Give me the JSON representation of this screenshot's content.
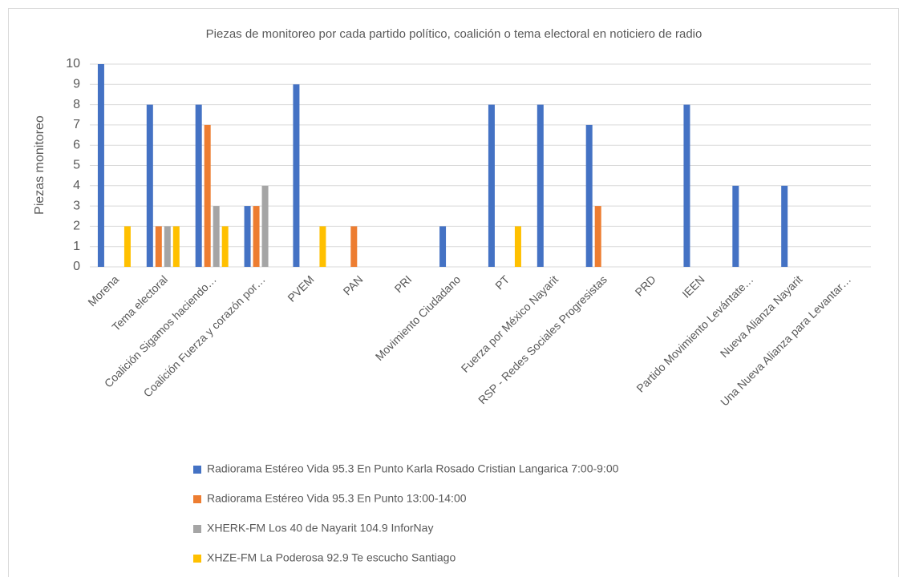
{
  "chart_data": {
    "type": "bar",
    "title": "Piezas de monitoreo por cada partido político, coalición o tema electoral en noticiero de radio",
    "y_label": "Piezas monitoreo",
    "categories": [
      "Morena",
      "Tema electoral",
      "Coalición Sigamos haciendo…",
      "Coalición Fuerza y corazón por…",
      "PVEM",
      "PAN",
      "PRI",
      "Movimiento Ciudadano",
      "PT",
      "Fuerza por México Nayarit",
      "RSP - Redes Sociales Progresistas",
      "PRD",
      "IEEN",
      "Partido Movimiento Levántate…",
      "Nueva Alianza Nayarit",
      "Una Nueva Alianza para Levantar…"
    ],
    "series": [
      {
        "name": "Radiorama Estéreo Vida 95.3 En Punto Karla Rosado Cristian Langarica 7:00-9:00",
        "color": "#4472c4",
        "values": [
          10,
          8,
          8,
          3,
          9,
          0,
          0,
          2,
          8,
          8,
          7,
          0,
          8,
          4,
          4,
          0
        ]
      },
      {
        "name": "Radiorama Estéreo Vida 95.3 En Punto 13:00-14:00",
        "color": "#ed7d31",
        "values": [
          0,
          2,
          7,
          3,
          0,
          2,
          0,
          0,
          0,
          0,
          3,
          0,
          0,
          0,
          0,
          0
        ]
      },
      {
        "name": "XHERK-FM Los 40 de Nayarit 104.9 InforNay",
        "color": "#a5a5a5",
        "values": [
          0,
          2,
          3,
          4,
          0,
          0,
          0,
          0,
          0,
          0,
          0,
          0,
          0,
          0,
          0,
          0
        ]
      },
      {
        "name": "XHZE-FM La Poderosa 92.9 Te escucho Santiago",
        "color": "#ffc000",
        "values": [
          2,
          2,
          2,
          0,
          2,
          0,
          0,
          0,
          2,
          0,
          0,
          0,
          0,
          0,
          0,
          0
        ]
      }
    ],
    "ylim": [
      0,
      10
    ],
    "yticks": [
      0,
      1,
      2,
      3,
      4,
      5,
      6,
      7,
      8,
      9,
      10
    ],
    "grid": true,
    "legend": "bottom"
  }
}
